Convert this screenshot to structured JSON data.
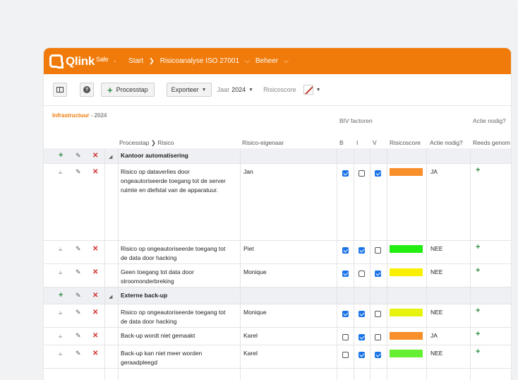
{
  "topbar": {
    "logo": "Qlink",
    "logo_sup": "Safe",
    "logo_dot": "·",
    "crumbs": [
      "Start",
      "Risicoanalyse ISO 27001",
      "Beheer"
    ]
  },
  "toolbar": {
    "help": "?",
    "process_step": "Processtap",
    "export": "Exporteer",
    "year_label": "Jaar",
    "year_value": "2024",
    "score_label": "Risicoscore"
  },
  "section": {
    "title": "Infrastructuur",
    "sep": " - ",
    "year": "2024"
  },
  "headers": {
    "group_biv": "BIV factoren",
    "group_action": "Actie nodig?",
    "process_risk": "Processtap",
    "process_risk_sep": "Risico",
    "owner": "Risico-eigenaar",
    "b": "B",
    "i": "I",
    "v": "V",
    "score": "Risicoscore",
    "action": "Actie nodig?",
    "taken": "Reeds genom"
  },
  "colors": {
    "orange": "#f98f2b",
    "green": "#22ee11",
    "yellow": "#f8f000",
    "yellowgreen": "#e7f20d",
    "lime": "#66ee33"
  },
  "rows": [
    {
      "type": "group",
      "name": "Kantoor automatisering"
    },
    {
      "type": "risk",
      "text": "Risico op dataverlies door ongeautoriseerde toegang tot de server ruimte en diefstal van de apparatuur.",
      "owner": "Jan",
      "b": true,
      "i": false,
      "v": true,
      "score_color": "orange",
      "action": "JA"
    },
    {
      "type": "risk",
      "text": "Risico op ongeautoriseerde toegang tot de data door hacking",
      "owner": "Piet",
      "b": true,
      "i": true,
      "v": false,
      "score_color": "green",
      "action": "NEE"
    },
    {
      "type": "risk",
      "text": "Geen toegang tot data door stroomonderbreking",
      "owner": "Monique",
      "b": true,
      "i": false,
      "v": true,
      "score_color": "yellow",
      "action": "NEE"
    },
    {
      "type": "group",
      "name": "Externe back-up"
    },
    {
      "type": "risk",
      "text": "Risico op ongeautoriseerde toegang tot de data door hacking",
      "owner": "Monique",
      "b": true,
      "i": true,
      "v": false,
      "score_color": "yellowgreen",
      "action": "NEE"
    },
    {
      "type": "risk",
      "text": "Back-up wordt niet gemaakt",
      "owner": "Karel",
      "b": false,
      "i": true,
      "v": false,
      "score_color": "orange",
      "action": "JA"
    },
    {
      "type": "risk",
      "text": "Back-up kan niet meer worden geraadpleegd",
      "owner": "Karel",
      "b": false,
      "i": true,
      "v": true,
      "score_color": "lime",
      "action": "NEE"
    }
  ]
}
